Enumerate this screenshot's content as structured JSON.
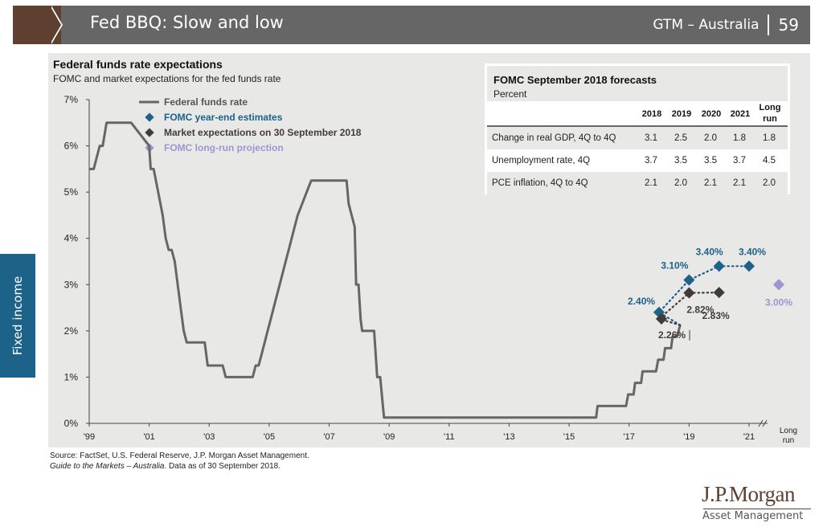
{
  "header": {
    "title": "Fed BBQ: Slow and low",
    "section": "GTM – Australia",
    "page_number": "59"
  },
  "side_tab": "Fixed income",
  "chart_data": {
    "type": "line",
    "title": "Federal funds rate expectations",
    "subtitle": "FOMC and market expectations for the fed funds rate",
    "ylim": [
      0,
      7
    ],
    "y_ticks": [
      "0%",
      "1%",
      "2%",
      "3%",
      "4%",
      "5%",
      "6%",
      "7%"
    ],
    "xlim": [
      1999,
      2021
    ],
    "x_ticks": [
      "'99",
      "'01",
      "'03",
      "'05",
      "'07",
      "'09",
      "'11",
      "'13",
      "'15",
      "'17",
      "'19",
      "'21"
    ],
    "x_tick_years": [
      1999,
      2001,
      2003,
      2005,
      2007,
      2009,
      2011,
      2013,
      2015,
      2017,
      2019,
      2021
    ],
    "long_run_label": [
      "Long",
      "run"
    ],
    "legend": [
      {
        "label": "Federal funds rate",
        "color": "#666666",
        "marker": "line"
      },
      {
        "label": "FOMC year-end estimates",
        "color": "#1d6289",
        "marker": "diamond"
      },
      {
        "label": "Market expectations on 30 September 2018",
        "color": "#433b38",
        "marker": "diamond"
      },
      {
        "label": "FOMC long-run projection",
        "color": "#a393d0",
        "marker": "diamond"
      }
    ],
    "legend_position": "top-left",
    "series": [
      {
        "name": "Federal funds rate",
        "color": "#666666",
        "points": [
          [
            1999.0,
            5.5
          ],
          [
            1999.15,
            5.5
          ],
          [
            1999.25,
            5.75
          ],
          [
            1999.35,
            6.0
          ],
          [
            1999.45,
            6.0
          ],
          [
            1999.58,
            6.5
          ],
          [
            2000.4,
            6.5
          ],
          [
            2001.0,
            6.0
          ],
          [
            2001.05,
            5.5
          ],
          [
            2001.15,
            5.5
          ],
          [
            2001.3,
            5.0
          ],
          [
            2001.45,
            4.5
          ],
          [
            2001.55,
            4.0
          ],
          [
            2001.65,
            3.75
          ],
          [
            2001.75,
            3.75
          ],
          [
            2001.85,
            3.5
          ],
          [
            2001.95,
            3.0
          ],
          [
            2002.05,
            2.5
          ],
          [
            2002.15,
            2.0
          ],
          [
            2002.25,
            1.75
          ],
          [
            2002.85,
            1.75
          ],
          [
            2002.95,
            1.25
          ],
          [
            2003.45,
            1.25
          ],
          [
            2003.55,
            1.0
          ],
          [
            2004.45,
            1.0
          ],
          [
            2004.55,
            1.25
          ],
          [
            2004.65,
            1.25
          ],
          [
            2004.75,
            1.5
          ],
          [
            2004.85,
            1.75
          ],
          [
            2004.95,
            2.0
          ],
          [
            2005.05,
            2.25
          ],
          [
            2005.15,
            2.5
          ],
          [
            2005.25,
            2.75
          ],
          [
            2005.35,
            3.0
          ],
          [
            2005.45,
            3.25
          ],
          [
            2005.55,
            3.5
          ],
          [
            2005.65,
            3.75
          ],
          [
            2005.75,
            4.0
          ],
          [
            2005.85,
            4.25
          ],
          [
            2005.95,
            4.5
          ],
          [
            2006.1,
            4.75
          ],
          [
            2006.25,
            5.0
          ],
          [
            2006.4,
            5.25
          ],
          [
            2007.58,
            5.25
          ],
          [
            2007.65,
            4.75
          ],
          [
            2007.75,
            4.5
          ],
          [
            2007.85,
            4.25
          ],
          [
            2007.9,
            3.0
          ],
          [
            2007.98,
            3.0
          ],
          [
            2008.05,
            2.25
          ],
          [
            2008.1,
            2.0
          ],
          [
            2008.5,
            2.0
          ],
          [
            2008.6,
            1.0
          ],
          [
            2008.7,
            1.0
          ],
          [
            2008.83,
            0.125
          ],
          [
            2015.9,
            0.125
          ],
          [
            2015.95,
            0.375
          ],
          [
            2016.9,
            0.375
          ],
          [
            2016.97,
            0.625
          ],
          [
            2017.15,
            0.625
          ],
          [
            2017.2,
            0.875
          ],
          [
            2017.4,
            0.875
          ],
          [
            2017.45,
            1.125
          ],
          [
            2017.9,
            1.125
          ],
          [
            2017.97,
            1.375
          ],
          [
            2018.15,
            1.375
          ],
          [
            2018.2,
            1.625
          ],
          [
            2018.4,
            1.625
          ],
          [
            2018.45,
            1.875
          ],
          [
            2018.6,
            1.875
          ],
          [
            2018.7,
            2.125
          ]
        ]
      },
      {
        "name": "FOMC year-end estimates",
        "color": "#1d6289",
        "points": [
          [
            2018,
            2.4
          ],
          [
            2019,
            3.1
          ],
          [
            2020,
            3.4
          ],
          [
            2021,
            3.4
          ]
        ],
        "labels": [
          "2.40%",
          "3.10%",
          "3.40%",
          "3.40%"
        ]
      },
      {
        "name": "Market expectations on 30 September 2018",
        "color": "#433b38",
        "points": [
          [
            2018,
            2.26
          ],
          [
            2019,
            2.82
          ],
          [
            2020,
            2.83
          ]
        ],
        "labels": [
          "2.26%",
          "2.82%",
          "2.83%"
        ]
      },
      {
        "name": "FOMC long-run projection",
        "color": "#a393d0",
        "points": [
          [
            "Long run",
            3.0
          ]
        ],
        "labels": [
          "3.00%"
        ]
      }
    ]
  },
  "forecast_table": {
    "title": "FOMC September 2018 forecasts",
    "unit": "Percent",
    "columns": [
      "2018",
      "2019",
      "2020",
      "2021",
      "Long run"
    ],
    "column_lines": [
      [
        "2018"
      ],
      [
        "2019"
      ],
      [
        "2020"
      ],
      [
        "2021"
      ],
      [
        "Long",
        "run"
      ]
    ],
    "rows": [
      {
        "label": "Change in real GDP, 4Q to 4Q",
        "values": [
          "3.1",
          "2.5",
          "2.0",
          "1.8",
          "1.8"
        ]
      },
      {
        "label": "Unemployment rate, 4Q",
        "values": [
          "3.7",
          "3.5",
          "3.5",
          "3.7",
          "4.5"
        ]
      },
      {
        "label": "PCE inflation, 4Q to 4Q",
        "values": [
          "2.1",
          "2.0",
          "2.1",
          "2.1",
          "2.0"
        ]
      }
    ]
  },
  "footer": {
    "source": "Source: FactSet, U.S. Federal Reserve, J.P. Morgan Asset Management.",
    "guide_italic": "Guide to the Markets – Australia",
    "guide_rest": ". Data as of 30 September 2018."
  },
  "logo": {
    "line1": "J.P.Morgan",
    "line2": "Asset Management"
  }
}
